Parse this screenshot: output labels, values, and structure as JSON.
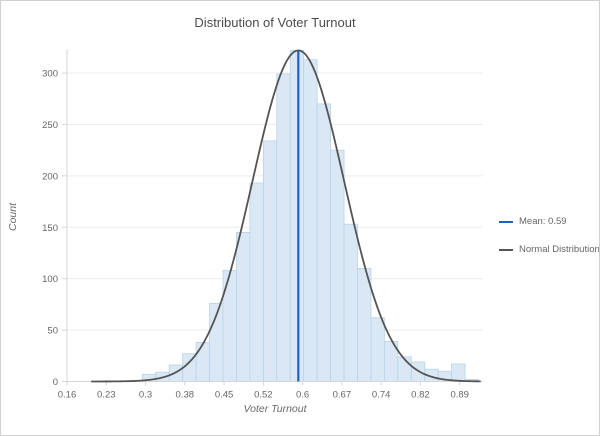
{
  "header": {
    "title": "Distribution of Voter Turnout"
  },
  "chart_data": {
    "type": "bar",
    "subtype": "histogram-with-normal-overlay",
    "title": "Distribution of Voter Turnout",
    "xlabel": "Voter Turnout",
    "ylabel": "Count",
    "xlim": [
      0.16,
      0.9324
    ],
    "ylim": [
      0,
      326.3
    ],
    "grid": "horizontal-only",
    "legend_position": "right-middle",
    "y_ticks": [
      0,
      50,
      100,
      150,
      200,
      250,
      300
    ],
    "x_ticks": [
      {
        "v": 0.16,
        "label": "0.16"
      },
      {
        "v": 0.233,
        "label": "0.23"
      },
      {
        "v": 0.306,
        "label": "0.3"
      },
      {
        "v": 0.379,
        "label": "0.38"
      },
      {
        "v": 0.452,
        "label": "0.45"
      },
      {
        "v": 0.525,
        "label": "0.52"
      },
      {
        "v": 0.598,
        "label": "0.6"
      },
      {
        "v": 0.671,
        "label": "0.67"
      },
      {
        "v": 0.744,
        "label": "0.74"
      },
      {
        "v": 0.817,
        "label": "0.82"
      },
      {
        "v": 0.89,
        "label": "0.89"
      }
    ],
    "bins": {
      "start": 0.3,
      "width": 0.025,
      "counts": [
        7,
        9,
        16,
        27,
        38,
        76,
        108,
        145,
        193,
        234,
        299,
        322,
        313,
        270,
        225,
        153,
        110,
        62,
        39,
        24,
        19,
        12,
        10,
        17,
        2
      ]
    },
    "overlays": [
      {
        "type": "vline",
        "label": "Mean: 0.59",
        "x": 0.59,
        "color": "#2160c4"
      },
      {
        "type": "normal_curve",
        "label": "Normal Distribution",
        "mean": 0.59,
        "sd": 0.085,
        "peak": 322,
        "range": [
          0.205,
          0.9324
        ],
        "color": "#545454"
      }
    ],
    "legend": [
      {
        "label": "Mean: 0.59",
        "color": "#2160c4"
      },
      {
        "label": "Normal Distribution",
        "color": "#545454"
      }
    ]
  },
  "colors": {
    "bar_fill": "#d9e8f4",
    "bar_border": "#bad3e7",
    "grid": "#ececec",
    "axis": "#d6d6d6",
    "tick_text": "#666666",
    "title_text": "#4d4d4d",
    "card_border": "#d0d0d0"
  }
}
